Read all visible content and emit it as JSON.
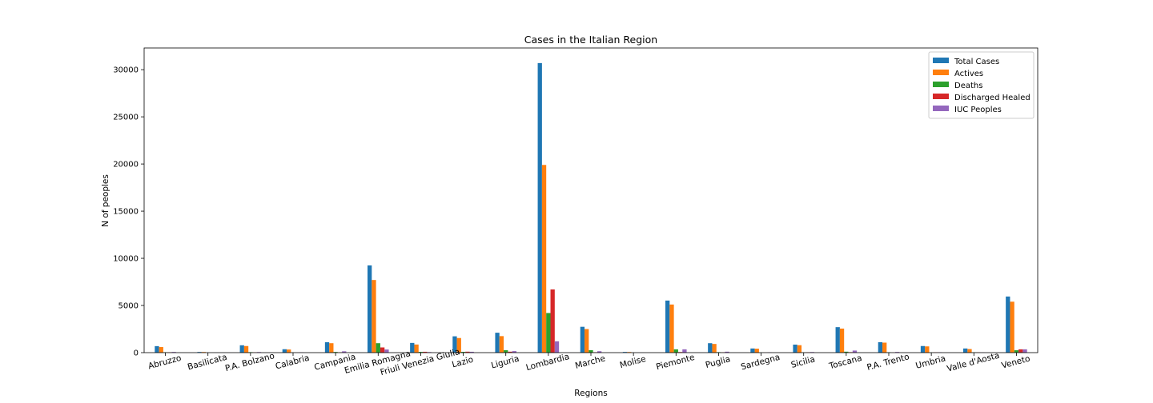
{
  "chart_data": {
    "type": "bar",
    "title": "Cases in the Italian Region",
    "xlabel": "Regions",
    "ylabel": "N of peoples",
    "ylim": [
      0,
      32300
    ],
    "yticks": [
      0,
      5000,
      10000,
      15000,
      20000,
      25000,
      30000
    ],
    "grid": false,
    "legend_position": "top-right",
    "categories": [
      "Abruzzo",
      "Basilicata",
      "P.A. Bolzano",
      "Calabria",
      "Campania",
      "Emilia Romagna",
      "Friuli Venezia Giulia",
      "Lazio",
      "Liguria",
      "Lombardia",
      "Marche",
      "Molise",
      "Piemonte",
      "Puglia",
      "Sardegna",
      "Sicilia",
      "Toscana",
      "P.A. Trento",
      "Umbria",
      "Valle d'Aosta",
      "Veneto"
    ],
    "series": [
      {
        "name": "Total Cases",
        "color": "#1f77b4",
        "values": [
          690,
          70,
          780,
          360,
          1100,
          9250,
          1030,
          1730,
          2110,
          30700,
          2740,
          70,
          5520,
          1000,
          440,
          850,
          2700,
          1110,
          700,
          440,
          5950
        ]
      },
      {
        "name": "Actives",
        "color": "#ff7f0e",
        "values": [
          590,
          65,
          700,
          330,
          1000,
          7700,
          860,
          1550,
          1750,
          19900,
          2500,
          65,
          5100,
          920,
          420,
          790,
          2550,
          1060,
          660,
          380,
          5400
        ]
      },
      {
        "name": "Deaths",
        "color": "#2ca02c",
        "values": [
          40,
          2,
          50,
          15,
          70,
          1000,
          80,
          80,
          260,
          4200,
          260,
          2,
          350,
          50,
          10,
          20,
          100,
          40,
          15,
          30,
          250
        ]
      },
      {
        "name": "Discharged Healed",
        "color": "#d62728",
        "values": [
          40,
          2,
          30,
          10,
          30,
          550,
          90,
          100,
          100,
          6700,
          40,
          2,
          60,
          30,
          10,
          40,
          50,
          10,
          30,
          30,
          350
        ]
      },
      {
        "name": "IUC Peoples",
        "color": "#9467bd",
        "values": [
          70,
          10,
          60,
          30,
          140,
          330,
          60,
          90,
          160,
          1200,
          150,
          10,
          350,
          100,
          30,
          60,
          220,
          70,
          40,
          20,
          350
        ]
      }
    ]
  }
}
